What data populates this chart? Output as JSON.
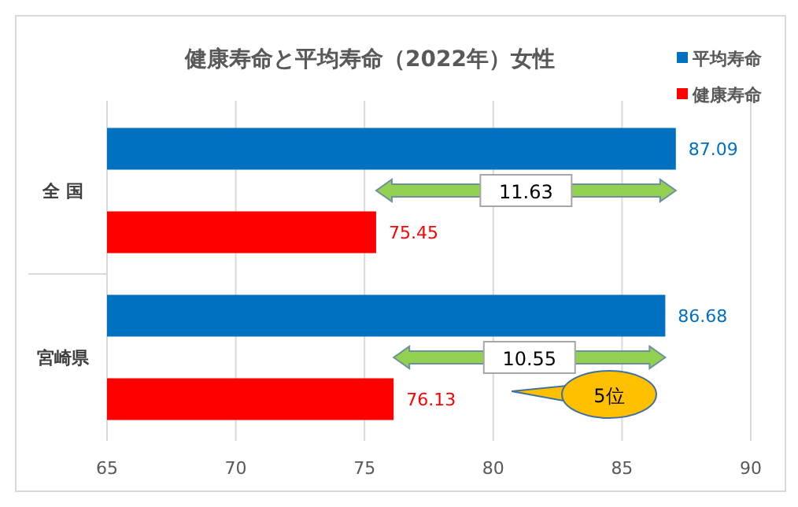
{
  "chart_data": {
    "type": "bar",
    "orientation": "horizontal",
    "title": "健康寿命と平均寿命（2022年）女性",
    "categories": [
      "全 国",
      "宮崎県"
    ],
    "series": [
      {
        "name": "平均寿命",
        "color": "#0070c0",
        "values": [
          87.09,
          86.68
        ]
      },
      {
        "name": "健康寿命",
        "color": "#ff0000",
        "values": [
          75.45,
          76.13
        ]
      }
    ],
    "xlim": [
      65,
      90
    ],
    "xticks": [
      65,
      70,
      75,
      80,
      85,
      90
    ],
    "grid": "x",
    "legend": "top right",
    "data_labels": true,
    "annotations": [
      "11.63",
      "10.55",
      "5位"
    ]
  }
}
